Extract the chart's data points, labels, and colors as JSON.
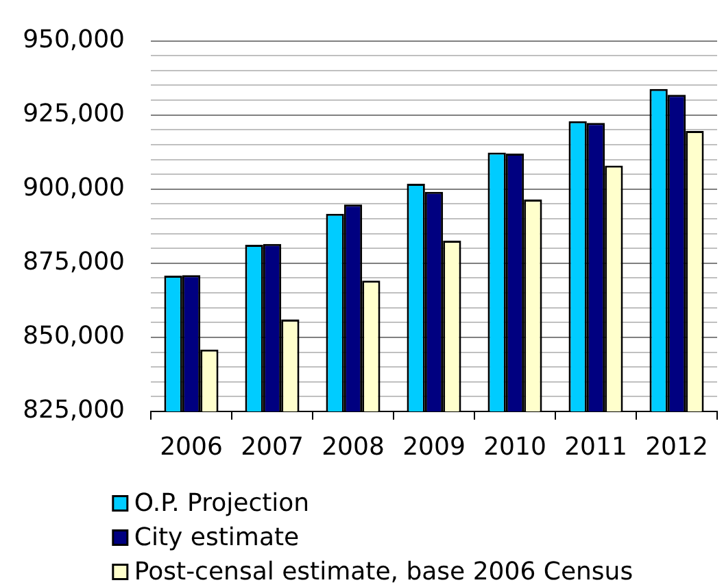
{
  "chart_data": {
    "type": "bar",
    "categories": [
      "2006",
      "2007",
      "2008",
      "2009",
      "2010",
      "2011",
      "2012"
    ],
    "series": [
      {
        "name": "O.P. Projection",
        "color": "#00ccff",
        "values": [
          870800,
          881200,
          891700,
          901800,
          912300,
          922900,
          933800
        ]
      },
      {
        "name": "City estimate",
        "color": "#000080",
        "values": [
          871000,
          881500,
          894800,
          899100,
          912000,
          922300,
          931800
        ]
      },
      {
        "name": "Post-censal estimate, base 2006 Census",
        "color": "#ffffcc",
        "values": [
          845900,
          856000,
          869100,
          882600,
          896500,
          907900,
          919600
        ]
      }
    ],
    "ylim": [
      825000,
      950000
    ],
    "yticks": [
      {
        "value": 825000,
        "label": "825,000"
      },
      {
        "value": 830000,
        "label": null
      },
      {
        "value": 835000,
        "label": null
      },
      {
        "value": 840000,
        "label": null
      },
      {
        "value": 845000,
        "label": null
      },
      {
        "value": 850000,
        "label": "850,000"
      },
      {
        "value": 855000,
        "label": null
      },
      {
        "value": 860000,
        "label": null
      },
      {
        "value": 865000,
        "label": null
      },
      {
        "value": 870000,
        "label": null
      },
      {
        "value": 875000,
        "label": "875,000"
      },
      {
        "value": 880000,
        "label": null
      },
      {
        "value": 885000,
        "label": null
      },
      {
        "value": 890000,
        "label": null
      },
      {
        "value": 895000,
        "label": null
      },
      {
        "value": 900000,
        "label": "900,000"
      },
      {
        "value": 905000,
        "label": null
      },
      {
        "value": 910000,
        "label": null
      },
      {
        "value": 915000,
        "label": null
      },
      {
        "value": 920000,
        "label": null
      },
      {
        "value": 925000,
        "label": "925,000"
      },
      {
        "value": 930000,
        "label": null
      },
      {
        "value": 935000,
        "label": null
      },
      {
        "value": 940000,
        "label": null
      },
      {
        "value": 945000,
        "label": null
      },
      {
        "value": 950000,
        "label": "950,000"
      }
    ],
    "grid": "y",
    "legend": "bottom"
  }
}
